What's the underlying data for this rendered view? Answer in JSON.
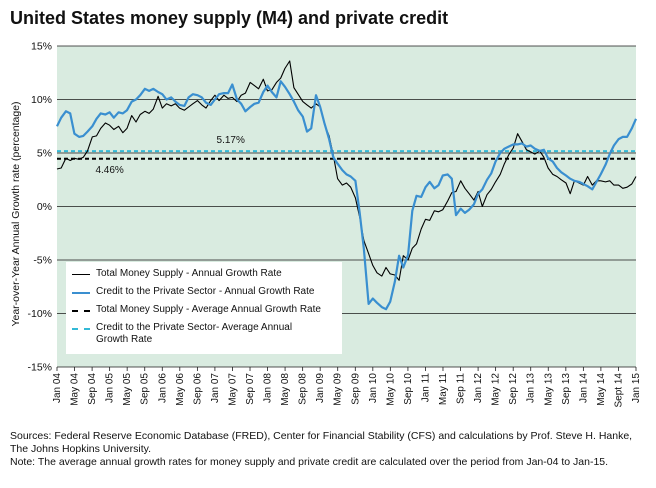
{
  "title": "United States money supply (M4) and private credit",
  "sources_line1": "Sources: Federal Reserve Economic Database (FRED), Center for Financial Stability (CFS) and calculations by Prof. Steve H. Hanke,",
  "sources_line2": "The Johns Hopkins University.",
  "note_line": "Note: The average annual growth rates for money supply and private credit are calculated over the period from Jan-04 to Jan-15.",
  "colors": {
    "plot_bg": "#d9ebe0",
    "money": "#000000",
    "credit": "#3a8fd0",
    "credit_avg": "#33b9d6"
  },
  "chart_data": {
    "type": "line",
    "ylabel": "Year-over-Year Annual Growth rate (percentage)",
    "ylim": [
      -15,
      15
    ],
    "yticks": [
      -15,
      -10,
      -5,
      0,
      5,
      10,
      15
    ],
    "ytick_labels": [
      "-15%",
      "-10%",
      "-5%",
      "0%",
      "5%",
      "10%",
      "15%"
    ],
    "xlim": [
      2004.0,
      2015.0
    ],
    "xticks": [
      2004.0,
      2004.333,
      2004.667,
      2005.0,
      2005.333,
      2005.667,
      2006.0,
      2006.333,
      2006.667,
      2007.0,
      2007.333,
      2007.667,
      2008.0,
      2008.333,
      2008.667,
      2009.0,
      2009.333,
      2009.667,
      2010.0,
      2010.333,
      2010.667,
      2011.0,
      2011.333,
      2011.667,
      2012.0,
      2012.333,
      2012.667,
      2013.0,
      2013.333,
      2013.667,
      2014.0,
      2014.333,
      2014.667,
      2015.0
    ],
    "xtick_labels": [
      "Jan 04",
      "May 04",
      "Sep 04",
      "Jan 05",
      "May 05",
      "Sep 05",
      "Jan 06",
      "May 06",
      "Sep 06",
      "Jan 07",
      "May 07",
      "Sep 07",
      "Jan 08",
      "May 08",
      "Sep 08",
      "Jan 09",
      "May 09",
      "Sep 09",
      "Jan 10",
      "May 10",
      "Sep 10",
      "Jan 11",
      "May 11",
      "Sep 11",
      "Jan 12",
      "May 12",
      "Sep 12",
      "Jan 13",
      "May 13",
      "Sep 13",
      "Jan 14",
      "May 14",
      "Sept 14",
      "Jan 15"
    ],
    "series": [
      {
        "name": "Total Money Supply - Annual Growth Rate",
        "color": "#000000",
        "style": "solid",
        "points": [
          [
            2004.0,
            3.5
          ],
          [
            2004.08,
            3.6
          ],
          [
            2004.17,
            4.5
          ],
          [
            2004.25,
            4.3
          ],
          [
            2004.33,
            4.5
          ],
          [
            2004.42,
            4.4
          ],
          [
            2004.5,
            4.6
          ],
          [
            2004.58,
            5.2
          ],
          [
            2004.67,
            6.5
          ],
          [
            2004.75,
            6.6
          ],
          [
            2004.83,
            7.3
          ],
          [
            2004.92,
            7.8
          ],
          [
            2005.0,
            7.6
          ],
          [
            2005.08,
            7.2
          ],
          [
            2005.17,
            7.5
          ],
          [
            2005.25,
            6.9
          ],
          [
            2005.33,
            7.3
          ],
          [
            2005.42,
            8.5
          ],
          [
            2005.5,
            7.9
          ],
          [
            2005.58,
            8.6
          ],
          [
            2005.67,
            8.9
          ],
          [
            2005.75,
            8.7
          ],
          [
            2005.83,
            9.1
          ],
          [
            2005.92,
            10.3
          ],
          [
            2006.0,
            9.2
          ],
          [
            2006.08,
            9.6
          ],
          [
            2006.17,
            9.4
          ],
          [
            2006.25,
            9.6
          ],
          [
            2006.33,
            9.2
          ],
          [
            2006.42,
            9.0
          ],
          [
            2006.5,
            9.3
          ],
          [
            2006.58,
            9.6
          ],
          [
            2006.67,
            9.9
          ],
          [
            2006.75,
            9.5
          ],
          [
            2006.83,
            9.2
          ],
          [
            2006.92,
            9.9
          ],
          [
            2007.0,
            10.4
          ],
          [
            2007.08,
            9.9
          ],
          [
            2007.17,
            10.4
          ],
          [
            2007.25,
            10.1
          ],
          [
            2007.33,
            10.2
          ],
          [
            2007.42,
            9.8
          ],
          [
            2007.5,
            10.4
          ],
          [
            2007.58,
            10.6
          ],
          [
            2007.67,
            11.6
          ],
          [
            2007.75,
            11.3
          ],
          [
            2007.83,
            11.0
          ],
          [
            2007.92,
            11.9
          ],
          [
            2008.0,
            10.8
          ],
          [
            2008.08,
            10.9
          ],
          [
            2008.17,
            11.6
          ],
          [
            2008.25,
            12.0
          ],
          [
            2008.33,
            12.9
          ],
          [
            2008.42,
            13.6
          ],
          [
            2008.5,
            11.1
          ],
          [
            2008.58,
            10.5
          ],
          [
            2008.67,
            9.8
          ],
          [
            2008.75,
            9.5
          ],
          [
            2008.83,
            9.2
          ],
          [
            2008.92,
            9.6
          ],
          [
            2009.0,
            9.3
          ],
          [
            2009.08,
            7.7
          ],
          [
            2009.17,
            6.6
          ],
          [
            2009.25,
            4.8
          ],
          [
            2009.33,
            2.6
          ],
          [
            2009.42,
            2.0
          ],
          [
            2009.5,
            2.2
          ],
          [
            2009.58,
            1.8
          ],
          [
            2009.67,
            0.8
          ],
          [
            2009.75,
            -1.0
          ],
          [
            2009.83,
            -3.2
          ],
          [
            2009.92,
            -4.4
          ],
          [
            2010.0,
            -5.5
          ],
          [
            2010.08,
            -6.2
          ],
          [
            2010.17,
            -6.5
          ],
          [
            2010.25,
            -5.7
          ],
          [
            2010.33,
            -6.3
          ],
          [
            2010.42,
            -6.4
          ],
          [
            2010.5,
            -6.9
          ],
          [
            2010.58,
            -4.6
          ],
          [
            2010.67,
            -5.0
          ],
          [
            2010.75,
            -3.9
          ],
          [
            2010.83,
            -3.5
          ],
          [
            2010.92,
            -2.1
          ],
          [
            2011.0,
            -1.2
          ],
          [
            2011.08,
            -1.3
          ],
          [
            2011.17,
            -0.4
          ],
          [
            2011.25,
            -0.5
          ],
          [
            2011.33,
            -0.3
          ],
          [
            2011.42,
            0.5
          ],
          [
            2011.5,
            1.3
          ],
          [
            2011.58,
            1.4
          ],
          [
            2011.67,
            2.4
          ],
          [
            2011.75,
            1.7
          ],
          [
            2011.83,
            1.2
          ],
          [
            2011.92,
            0.6
          ],
          [
            2012.0,
            1.4
          ],
          [
            2012.08,
            0.0
          ],
          [
            2012.17,
            1.1
          ],
          [
            2012.25,
            1.6
          ],
          [
            2012.33,
            2.3
          ],
          [
            2012.42,
            3.0
          ],
          [
            2012.5,
            4.0
          ],
          [
            2012.58,
            4.8
          ],
          [
            2012.67,
            5.5
          ],
          [
            2012.75,
            6.8
          ],
          [
            2012.83,
            6.1
          ],
          [
            2012.92,
            5.3
          ],
          [
            2013.0,
            5.1
          ],
          [
            2013.08,
            4.9
          ],
          [
            2013.17,
            5.2
          ],
          [
            2013.25,
            4.6
          ],
          [
            2013.33,
            3.6
          ],
          [
            2013.42,
            3.0
          ],
          [
            2013.5,
            2.8
          ],
          [
            2013.58,
            2.5
          ],
          [
            2013.67,
            2.2
          ],
          [
            2013.75,
            1.2
          ],
          [
            2013.83,
            2.4
          ],
          [
            2013.92,
            2.2
          ],
          [
            2014.0,
            2.0
          ],
          [
            2014.08,
            2.8
          ],
          [
            2014.17,
            2.0
          ],
          [
            2014.25,
            2.4
          ],
          [
            2014.33,
            2.4
          ],
          [
            2014.42,
            2.3
          ],
          [
            2014.5,
            2.4
          ],
          [
            2014.58,
            2.0
          ],
          [
            2014.67,
            2.0
          ],
          [
            2014.75,
            1.7
          ],
          [
            2014.83,
            1.8
          ],
          [
            2014.92,
            2.1
          ],
          [
            2015.0,
            2.8
          ]
        ]
      },
      {
        "name": "Credit to the Private Sector - Annual Growth Rate",
        "color": "#3a8fd0",
        "style": "solid",
        "points": [
          [
            2004.0,
            7.5
          ],
          [
            2004.08,
            8.3
          ],
          [
            2004.17,
            8.9
          ],
          [
            2004.25,
            8.7
          ],
          [
            2004.33,
            6.8
          ],
          [
            2004.42,
            6.5
          ],
          [
            2004.5,
            6.6
          ],
          [
            2004.58,
            7.0
          ],
          [
            2004.67,
            7.5
          ],
          [
            2004.75,
            8.2
          ],
          [
            2004.83,
            8.7
          ],
          [
            2004.92,
            8.6
          ],
          [
            2005.0,
            8.8
          ],
          [
            2005.08,
            8.3
          ],
          [
            2005.17,
            8.8
          ],
          [
            2005.25,
            8.7
          ],
          [
            2005.33,
            9.0
          ],
          [
            2005.42,
            9.8
          ],
          [
            2005.5,
            10.0
          ],
          [
            2005.58,
            10.4
          ],
          [
            2005.67,
            11.0
          ],
          [
            2005.75,
            10.8
          ],
          [
            2005.83,
            11.0
          ],
          [
            2005.92,
            10.7
          ],
          [
            2006.0,
            10.5
          ],
          [
            2006.08,
            10.0
          ],
          [
            2006.17,
            10.2
          ],
          [
            2006.25,
            9.8
          ],
          [
            2006.33,
            9.5
          ],
          [
            2006.42,
            9.4
          ],
          [
            2006.5,
            10.2
          ],
          [
            2006.58,
            10.5
          ],
          [
            2006.67,
            10.4
          ],
          [
            2006.75,
            10.2
          ],
          [
            2006.83,
            9.7
          ],
          [
            2006.92,
            9.5
          ],
          [
            2007.0,
            10.0
          ],
          [
            2007.08,
            10.5
          ],
          [
            2007.17,
            10.6
          ],
          [
            2007.25,
            10.6
          ],
          [
            2007.33,
            11.4
          ],
          [
            2007.42,
            10.0
          ],
          [
            2007.5,
            9.6
          ],
          [
            2007.58,
            8.9
          ],
          [
            2007.67,
            9.3
          ],
          [
            2007.75,
            9.6
          ],
          [
            2007.83,
            9.7
          ],
          [
            2007.92,
            10.7
          ],
          [
            2008.0,
            11.3
          ],
          [
            2008.08,
            10.7
          ],
          [
            2008.17,
            10.2
          ],
          [
            2008.25,
            11.7
          ],
          [
            2008.33,
            11.2
          ],
          [
            2008.42,
            10.5
          ],
          [
            2008.5,
            9.8
          ],
          [
            2008.58,
            9.0
          ],
          [
            2008.67,
            8.4
          ],
          [
            2008.75,
            7.0
          ],
          [
            2008.83,
            7.3
          ],
          [
            2008.92,
            10.4
          ],
          [
            2009.0,
            9.3
          ],
          [
            2009.08,
            7.8
          ],
          [
            2009.17,
            6.3
          ],
          [
            2009.25,
            4.6
          ],
          [
            2009.33,
            4.0
          ],
          [
            2009.42,
            3.4
          ],
          [
            2009.5,
            3.0
          ],
          [
            2009.58,
            2.8
          ],
          [
            2009.67,
            2.4
          ],
          [
            2009.75,
            -0.6
          ],
          [
            2009.83,
            -4.0
          ],
          [
            2009.92,
            -9.1
          ],
          [
            2010.0,
            -8.6
          ],
          [
            2010.08,
            -9.0
          ],
          [
            2010.17,
            -9.4
          ],
          [
            2010.25,
            -9.6
          ],
          [
            2010.33,
            -8.9
          ],
          [
            2010.42,
            -7.0
          ],
          [
            2010.5,
            -4.6
          ],
          [
            2010.58,
            -5.7
          ],
          [
            2010.67,
            -4.5
          ],
          [
            2010.75,
            -0.4
          ],
          [
            2010.83,
            1.0
          ],
          [
            2010.92,
            0.9
          ],
          [
            2011.0,
            1.8
          ],
          [
            2011.08,
            2.3
          ],
          [
            2011.17,
            1.7
          ],
          [
            2011.25,
            2.0
          ],
          [
            2011.33,
            2.9
          ],
          [
            2011.42,
            3.0
          ],
          [
            2011.5,
            2.6
          ],
          [
            2011.58,
            -0.8
          ],
          [
            2011.67,
            -0.2
          ],
          [
            2011.75,
            -0.6
          ],
          [
            2011.83,
            -0.3
          ],
          [
            2011.92,
            0.2
          ],
          [
            2012.0,
            1.2
          ],
          [
            2012.08,
            1.6
          ],
          [
            2012.17,
            2.5
          ],
          [
            2012.25,
            3.1
          ],
          [
            2012.33,
            4.2
          ],
          [
            2012.42,
            5.0
          ],
          [
            2012.5,
            5.4
          ],
          [
            2012.58,
            5.6
          ],
          [
            2012.67,
            5.8
          ],
          [
            2012.75,
            5.8
          ],
          [
            2012.83,
            5.9
          ],
          [
            2012.92,
            5.6
          ],
          [
            2013.0,
            5.7
          ],
          [
            2013.08,
            5.4
          ],
          [
            2013.17,
            5.2
          ],
          [
            2013.25,
            5.3
          ],
          [
            2013.33,
            4.5
          ],
          [
            2013.42,
            4.2
          ],
          [
            2013.5,
            3.6
          ],
          [
            2013.58,
            3.2
          ],
          [
            2013.67,
            2.9
          ],
          [
            2013.75,
            2.6
          ],
          [
            2013.83,
            2.4
          ],
          [
            2013.92,
            2.3
          ],
          [
            2014.0,
            2.1
          ],
          [
            2014.08,
            1.9
          ],
          [
            2014.17,
            1.6
          ],
          [
            2014.25,
            2.3
          ],
          [
            2014.33,
            3.0
          ],
          [
            2014.42,
            3.9
          ],
          [
            2014.5,
            4.9
          ],
          [
            2014.58,
            5.7
          ],
          [
            2014.67,
            6.3
          ],
          [
            2014.75,
            6.5
          ],
          [
            2014.83,
            6.5
          ],
          [
            2014.92,
            7.3
          ],
          [
            2015.0,
            8.2
          ]
        ]
      },
      {
        "name": "Total Money Supply - Average Annual Growth Rate",
        "color": "#000000",
        "style": "dashed",
        "value": 4.46
      },
      {
        "name": "Credit to the Private Sector- Average Annual Growth Rate",
        "color": "#33b9d6",
        "style": "dashed",
        "value": 5.17
      }
    ],
    "annotations": [
      {
        "text": "5.17%",
        "x": 2007.3,
        "y": 5.17
      },
      {
        "text": "4.46%",
        "x": 2005.0,
        "y": 4.46
      }
    ],
    "legend": {
      "position": "lower-left",
      "entries": [
        "Total Money Supply - Annual Growth Rate",
        "Credit to the Private Sector - Annual Growth Rate",
        "Total Money Supply - Average Annual Growth Rate",
        "Credit to the Private Sector- Average Annual Growth Rate"
      ]
    },
    "grid": "horizontal"
  }
}
